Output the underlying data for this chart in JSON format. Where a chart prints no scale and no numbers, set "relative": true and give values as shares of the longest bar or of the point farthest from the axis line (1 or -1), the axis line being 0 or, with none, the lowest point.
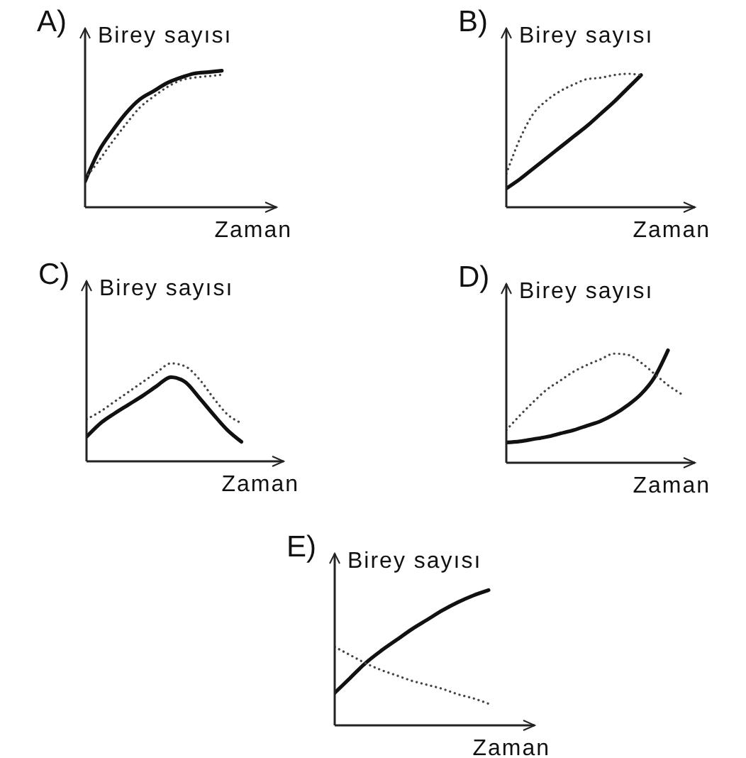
{
  "chart_data": [
    {
      "type": "line",
      "title": "A)",
      "ylabel": "Birey sayısı",
      "xlabel": "Zaman",
      "relative": true,
      "categories": [
        null,
        null,
        null,
        null,
        null,
        null,
        null,
        null,
        null,
        null,
        null,
        null,
        null,
        null,
        null
      ],
      "series": [
        {
          "color": "#111111",
          "line_style": "solid",
          "values": [
            0.19,
            0.41,
            0.56,
            0.69,
            0.79,
            0.85,
            0.91,
            0.95,
            0.98,
            0.99,
            1.0,
            null,
            null,
            null,
            null
          ]
        },
        {
          "color": "#444444",
          "line_style": "dotted",
          "values": [
            0.21,
            0.34,
            0.48,
            0.61,
            0.73,
            0.81,
            0.88,
            0.93,
            0.95,
            0.96,
            0.97,
            null,
            null,
            null,
            null
          ]
        }
      ]
    },
    {
      "type": "line",
      "title": "B)",
      "ylabel": "Birey sayısı",
      "xlabel": "Zaman",
      "relative": true,
      "categories": [
        null,
        null,
        null,
        null,
        null,
        null,
        null,
        null,
        null,
        null,
        null,
        null,
        null,
        null,
        null
      ],
      "series": [
        {
          "color": "#111111",
          "line_style": "solid",
          "values": [
            0.14,
            0.21,
            0.29,
            0.37,
            0.45,
            0.53,
            0.61,
            0.7,
            0.79,
            0.89,
            0.99,
            null,
            null,
            null,
            null
          ]
        },
        {
          "color": "#444444",
          "line_style": "dotted",
          "values": [
            0.25,
            0.51,
            0.7,
            0.8,
            0.87,
            0.92,
            0.96,
            0.97,
            0.99,
            1.0,
            0.99,
            null,
            null,
            null,
            null
          ]
        }
      ]
    },
    {
      "type": "line",
      "title": "C)",
      "ylabel": "Birey sayısı",
      "xlabel": "Zaman",
      "relative": true,
      "categories": [
        null,
        null,
        null,
        null,
        null,
        null,
        null,
        null,
        null,
        null,
        null,
        null,
        null,
        null,
        null
      ],
      "series": [
        {
          "color": "#111111",
          "line_style": "solid",
          "values": [
            0.25,
            0.39,
            0.49,
            0.58,
            0.67,
            0.77,
            0.86,
            0.81,
            0.65,
            0.48,
            0.32,
            0.2,
            null,
            null,
            null
          ]
        },
        {
          "color": "#444444",
          "line_style": "dotted",
          "values": [
            0.43,
            0.51,
            0.61,
            0.71,
            0.81,
            0.91,
            1.0,
            0.97,
            0.84,
            0.65,
            0.48,
            0.39,
            null,
            null,
            null
          ]
        }
      ]
    },
    {
      "type": "line",
      "title": "D)",
      "ylabel": "Birey sayısı",
      "xlabel": "Zaman",
      "relative": true,
      "categories": [
        null,
        null,
        null,
        null,
        null,
        null,
        null,
        null,
        null,
        null,
        null,
        null,
        null,
        null,
        null
      ],
      "series": [
        {
          "color": "#111111",
          "line_style": "solid",
          "values": [
            0.18,
            0.19,
            0.21,
            0.23,
            0.26,
            0.29,
            0.33,
            0.37,
            0.43,
            0.51,
            0.61,
            0.76,
            1.0,
            null,
            null
          ]
        },
        {
          "color": "#444444",
          "line_style": "dotted",
          "values": [
            0.29,
            0.42,
            0.54,
            0.65,
            0.73,
            0.81,
            0.87,
            0.92,
            0.97,
            0.96,
            0.89,
            0.79,
            0.69,
            0.61,
            null
          ]
        }
      ]
    },
    {
      "type": "line",
      "title": "E)",
      "ylabel": "Birey sayısı",
      "xlabel": "Zaman",
      "relative": true,
      "categories": [
        null,
        null,
        null,
        null,
        null,
        null,
        null,
        null,
        null,
        null,
        null,
        null,
        null,
        null
      ],
      "series": [
        {
          "color": "#111111",
          "line_style": "solid",
          "values": [
            0.24,
            0.35,
            0.46,
            0.55,
            0.63,
            0.71,
            0.78,
            0.85,
            0.91,
            0.96,
            1.0,
            null,
            null,
            null
          ]
        },
        {
          "color": "#444444",
          "line_style": "dotted",
          "values": [
            0.58,
            0.52,
            0.46,
            0.41,
            0.37,
            0.33,
            0.3,
            0.27,
            0.23,
            0.2,
            0.16,
            null,
            null,
            null
          ]
        }
      ]
    }
  ]
}
